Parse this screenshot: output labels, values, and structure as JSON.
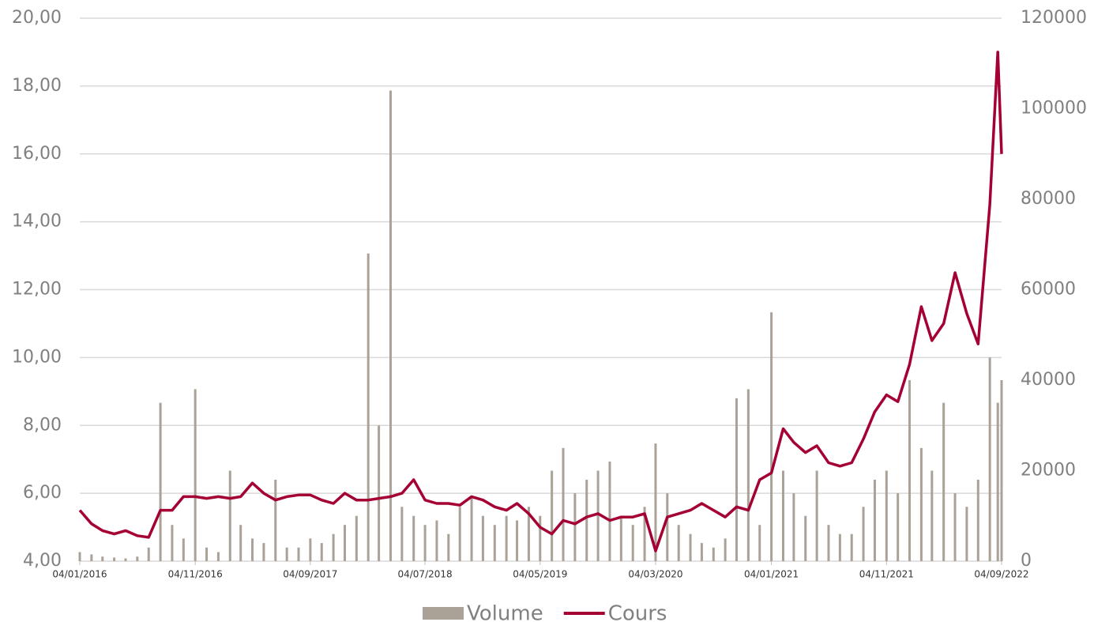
{
  "chart_data": {
    "type": "line",
    "x": [
      "2016-01-04",
      "2016-02-04",
      "2016-03-04",
      "2016-04-04",
      "2016-05-04",
      "2016-06-04",
      "2016-07-04",
      "2016-08-04",
      "2016-09-04",
      "2016-10-04",
      "2016-11-04",
      "2016-12-04",
      "2017-01-04",
      "2017-02-04",
      "2017-03-04",
      "2017-04-04",
      "2017-05-04",
      "2017-06-04",
      "2017-07-04",
      "2017-08-04",
      "2017-09-04",
      "2017-10-04",
      "2017-11-04",
      "2017-12-04",
      "2018-01-04",
      "2018-02-04",
      "2018-03-04",
      "2018-04-04",
      "2018-05-04",
      "2018-06-04",
      "2018-07-04",
      "2018-08-04",
      "2018-09-04",
      "2018-10-04",
      "2018-11-04",
      "2018-12-04",
      "2019-01-04",
      "2019-02-04",
      "2019-03-04",
      "2019-04-04",
      "2019-05-04",
      "2019-06-04",
      "2019-07-04",
      "2019-08-04",
      "2019-09-04",
      "2019-10-04",
      "2019-11-04",
      "2019-12-04",
      "2020-01-04",
      "2020-02-04",
      "2020-03-04",
      "2020-04-04",
      "2020-05-04",
      "2020-06-04",
      "2020-07-04",
      "2020-08-04",
      "2020-09-04",
      "2020-10-04",
      "2020-11-04",
      "2020-12-04",
      "2021-01-04",
      "2021-02-04",
      "2021-03-04",
      "2021-04-04",
      "2021-05-04",
      "2021-06-04",
      "2021-07-04",
      "2021-08-04",
      "2021-09-04",
      "2021-10-04",
      "2021-11-04",
      "2021-12-04",
      "2022-01-04",
      "2022-02-04",
      "2022-03-04",
      "2022-04-04",
      "2022-05-04",
      "2022-06-04",
      "2022-07-04",
      "2022-08-04",
      "2022-08-25",
      "2022-09-04"
    ],
    "series": [
      {
        "name": "Volume",
        "type": "bar",
        "axis": "y2",
        "color": "#aaa197",
        "values": [
          2000,
          1500,
          1000,
          800,
          600,
          1000,
          3000,
          35000,
          8000,
          5000,
          38000,
          3000,
          2000,
          20000,
          8000,
          5000,
          4000,
          18000,
          3000,
          3000,
          5000,
          4000,
          6000,
          8000,
          10000,
          68000,
          30000,
          104000,
          12000,
          10000,
          8000,
          9000,
          6000,
          12000,
          14000,
          10000,
          8000,
          10000,
          9000,
          12000,
          10000,
          20000,
          25000,
          15000,
          18000,
          20000,
          22000,
          10000,
          8000,
          12000,
          26000,
          15000,
          8000,
          6000,
          4000,
          3000,
          5000,
          36000,
          38000,
          8000,
          55000,
          20000,
          15000,
          10000,
          20000,
          8000,
          6000,
          6000,
          12000,
          18000,
          20000,
          15000,
          40000,
          25000,
          20000,
          35000,
          15000,
          12000,
          18000,
          45000,
          35000,
          40000
        ]
      },
      {
        "name": "Cours",
        "type": "line",
        "color": "#a50034",
        "values": [
          5.5,
          5.1,
          4.9,
          4.8,
          4.9,
          4.75,
          4.7,
          5.5,
          5.5,
          5.9,
          5.9,
          5.85,
          5.9,
          5.85,
          5.9,
          6.3,
          6.0,
          5.8,
          5.9,
          5.95,
          5.95,
          5.8,
          5.7,
          6.0,
          5.8,
          5.8,
          5.85,
          5.9,
          6.0,
          6.4,
          5.8,
          5.7,
          5.7,
          5.65,
          5.9,
          5.8,
          5.6,
          5.5,
          5.7,
          5.4,
          5.0,
          4.8,
          5.2,
          5.1,
          5.3,
          5.4,
          5.2,
          5.3,
          5.3,
          5.4,
          4.3,
          5.3,
          5.4,
          5.5,
          5.7,
          5.5,
          5.3,
          5.6,
          5.5,
          6.4,
          6.6,
          7.9,
          7.5,
          7.2,
          7.4,
          6.9,
          6.8,
          6.9,
          7.6,
          8.4,
          8.9,
          8.7,
          9.8,
          11.5,
          10.5,
          11.0,
          12.5,
          11.3,
          10.4,
          14.5,
          19.0,
          16.0
        ]
      }
    ],
    "xlim": [
      "2016-01-04",
      "2022-09-04"
    ],
    "xticks": [
      {
        "value": "2016-01-04",
        "label": "04/01/2016"
      },
      {
        "value": "2016-11-04",
        "label": "04/11/2016"
      },
      {
        "value": "2017-09-04",
        "label": "04/09/2017"
      },
      {
        "value": "2018-07-04",
        "label": "04/07/2018"
      },
      {
        "value": "2019-05-04",
        "label": "04/05/2019"
      },
      {
        "value": "2020-03-04",
        "label": "04/03/2020"
      },
      {
        "value": "2021-01-04",
        "label": "04/01/2021"
      },
      {
        "value": "2021-11-04",
        "label": "04/11/2021"
      },
      {
        "value": "2022-09-04",
        "label": "04/09/2022"
      }
    ],
    "ylim": [
      4,
      20
    ],
    "yticks": [
      {
        "value": 4,
        "label": "4,00"
      },
      {
        "value": 6,
        "label": "6,00"
      },
      {
        "value": 8,
        "label": "8,00"
      },
      {
        "value": 10,
        "label": "10,00"
      },
      {
        "value": 12,
        "label": "12,00"
      },
      {
        "value": 14,
        "label": "14,00"
      },
      {
        "value": 16,
        "label": "16,00"
      },
      {
        "value": 18,
        "label": "18,00"
      },
      {
        "value": 20,
        "label": "20,00"
      }
    ],
    "y2lim": [
      0,
      120000
    ],
    "y2ticks": [
      0,
      20000,
      40000,
      60000,
      80000,
      100000,
      120000
    ],
    "grid": true,
    "legend": "bottom"
  }
}
